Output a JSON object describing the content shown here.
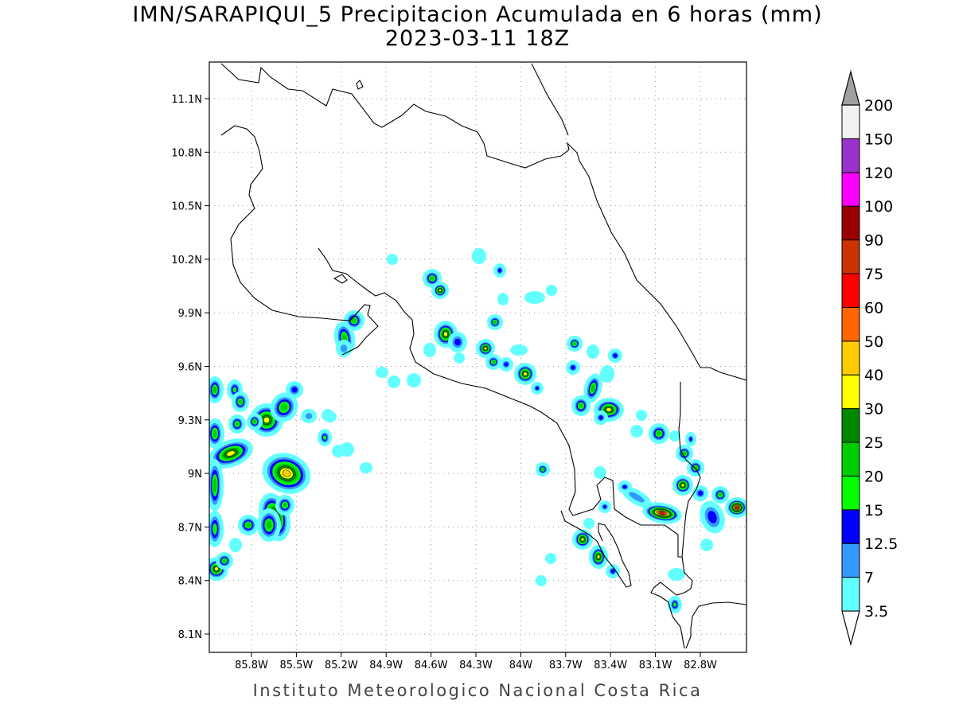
{
  "title": {
    "line1": "IMN/SARAPIQUI_5 Precipitacion Acumulada en 6 horas (mm)",
    "line2": "2023-03-11 18Z"
  },
  "footer": "Instituto Meteorologico Nacional Costa Rica",
  "axes": {
    "lat_labels": [
      "11.1N",
      "10.8N",
      "10.5N",
      "10.2N",
      "9.9N",
      "9.6N",
      "9.3N",
      "9N",
      "8.7N",
      "8.4N",
      "8.1N"
    ],
    "lon_labels": [
      "85.8W",
      "85.5W",
      "85.2W",
      "84.9W",
      "84.6W",
      "84.3W",
      "84W",
      "83.7W",
      "83.4W",
      "83.1W",
      "82.8W"
    ],
    "lat_values": [
      11.1,
      10.8,
      10.5,
      10.2,
      9.9,
      9.6,
      9.3,
      9.0,
      8.7,
      8.4,
      8.1
    ],
    "lon_values": [
      -85.8,
      -85.5,
      -85.2,
      -84.9,
      -84.6,
      -84.3,
      -84.0,
      -83.7,
      -83.4,
      -83.1,
      -82.8
    ],
    "lat_range": [
      8.0,
      11.3
    ],
    "lon_range": [
      -85.9,
      -82.6
    ],
    "grid": "dotted"
  },
  "colorbar": {
    "labels": [
      "3.5",
      "7",
      "12.5",
      "15",
      "20",
      "25",
      "30",
      "40",
      "50",
      "60",
      "75",
      "90",
      "100",
      "120",
      "150",
      "200"
    ],
    "colors": [
      "#ffffff",
      "#63ffff",
      "#3399ff",
      "#0000ff",
      "#00ff00",
      "#00cc00",
      "#008800",
      "#ffff00",
      "#ffcc00",
      "#ff6600",
      "#ff0000",
      "#cc3300",
      "#990000",
      "#ff00ff",
      "#9933cc",
      "#f2f2f2",
      "#a0a0a0"
    ]
  }
}
